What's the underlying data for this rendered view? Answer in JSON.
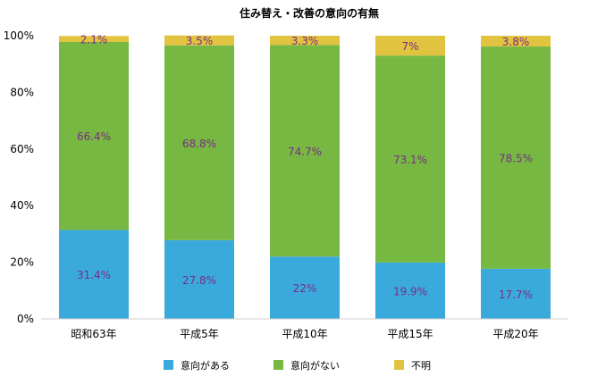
{
  "chart_data": {
    "type": "bar",
    "stacked": true,
    "title": "住み替え・改善の意向の有無",
    "categories": [
      "昭和63年",
      "平成5年",
      "平成10年",
      "平成15年",
      "平成20年"
    ],
    "series": [
      {
        "name": "意向がある",
        "values": [
          31.4,
          27.8,
          22,
          19.9,
          17.7
        ],
        "labels": [
          "31.4%",
          "27.8%",
          "22%",
          "19.9%",
          "17.7%"
        ],
        "color": "#3aaadc"
      },
      {
        "name": "意向がない",
        "values": [
          66.4,
          68.8,
          74.7,
          73.1,
          78.5
        ],
        "labels": [
          "66.4%",
          "68.8%",
          "74.7%",
          "73.1%",
          "78.5%"
        ],
        "color": "#77b843"
      },
      {
        "name": "不明",
        "values": [
          2.1,
          3.5,
          3.3,
          7,
          3.8
        ],
        "labels": [
          "2.1%",
          "3.5%",
          "3.3%",
          "7%",
          "3.8%"
        ],
        "color": "#e2c340"
      }
    ],
    "ylim": [
      0,
      100
    ],
    "yticks": [
      "0%",
      "20%",
      "40%",
      "60%",
      "80%",
      "100%"
    ],
    "legend_position": "bottom",
    "grid": false
  }
}
